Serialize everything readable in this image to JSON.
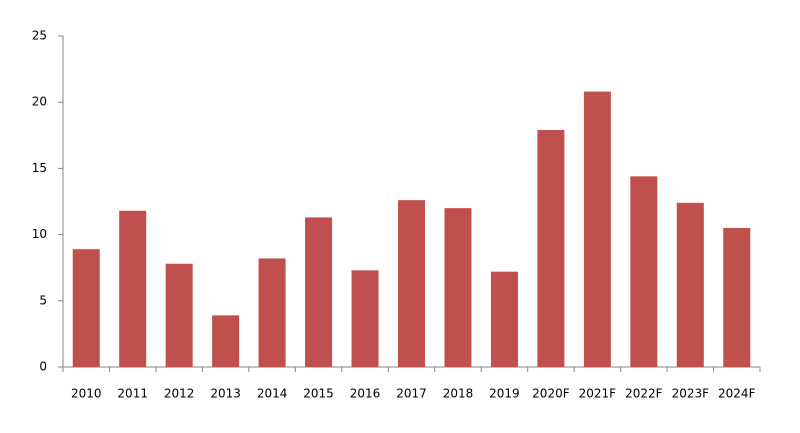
{
  "chart_data": {
    "type": "bar",
    "categories": [
      "2010",
      "2011",
      "2012",
      "2013",
      "2014",
      "2015",
      "2016",
      "2017",
      "2018",
      "2019",
      "2020F",
      "2021F",
      "2022F",
      "2023F",
      "2024F"
    ],
    "values": [
      8.9,
      11.8,
      7.8,
      3.9,
      8.2,
      11.3,
      7.3,
      12.6,
      12.0,
      7.2,
      17.9,
      20.8,
      14.4,
      12.4,
      10.5
    ],
    "color": "#c0504d",
    "ylim": [
      0,
      25
    ],
    "yticks": [
      0,
      5,
      10,
      15,
      20,
      25
    ],
    "grid": false
  }
}
